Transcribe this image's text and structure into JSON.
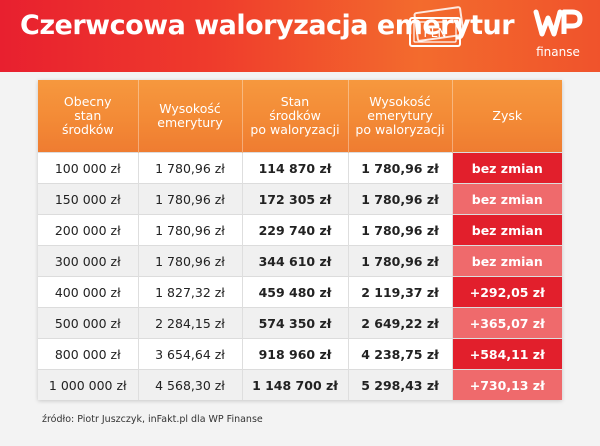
{
  "header": {
    "title": "Czerwcowa waloryzacja emerytur",
    "pln_note_text": "PLN",
    "logo_mark": "WP",
    "logo_text": "finanse"
  },
  "colors": {
    "header_red": "#e8202f",
    "header_orange": "#f36b2d",
    "table_header_orange": "#f38a36",
    "zysk_red": "#e21f2c",
    "zysk_light_red": "#ef6a6c"
  },
  "table": {
    "columns": [
      [
        "Obecny",
        "stan",
        "środków"
      ],
      [
        "Wysokość",
        "emerytury"
      ],
      [
        "Stan",
        "środków",
        "po waloryzacji"
      ],
      [
        "Wysokość",
        "emerytury",
        "po waloryzacji"
      ],
      [
        "Zysk"
      ]
    ],
    "rows": [
      [
        "100 000 zł",
        "1 780,96 zł",
        "114 870 zł",
        "1 780,96 zł",
        "bez zmian"
      ],
      [
        "150 000 zł",
        "1 780,96 zł",
        "172 305 zł",
        "1 780,96 zł",
        "bez zmian"
      ],
      [
        "200 000 zł",
        "1 780,96 zł",
        "229 740 zł",
        "1 780,96 zł",
        "bez zmian"
      ],
      [
        "300 000 zł",
        "1 780,96 zł",
        "344 610 zł",
        "1 780,96 zł",
        "bez zmian"
      ],
      [
        "400 000 zł",
        "1 827,32 zł",
        "459 480 zł",
        "2 119,37 zł",
        "+292,05 zł"
      ],
      [
        "500 000 zł",
        "2 284,15 zł",
        "574 350 zł",
        "2 649,22 zł",
        "+365,07 zł"
      ],
      [
        "800 000 zł",
        "3 654,64 zł",
        "918 960 zł",
        "4 238,75 zł",
        "+584,11 zł"
      ],
      [
        "1 000 000 zł",
        "4 568,30 zł",
        "1 148 700 zł",
        "5 298,43 zł",
        "+730,13 zł"
      ]
    ]
  },
  "footer": {
    "source": "źródło: Piotr Juszczyk, inFakt.pl dla WP Finanse"
  }
}
